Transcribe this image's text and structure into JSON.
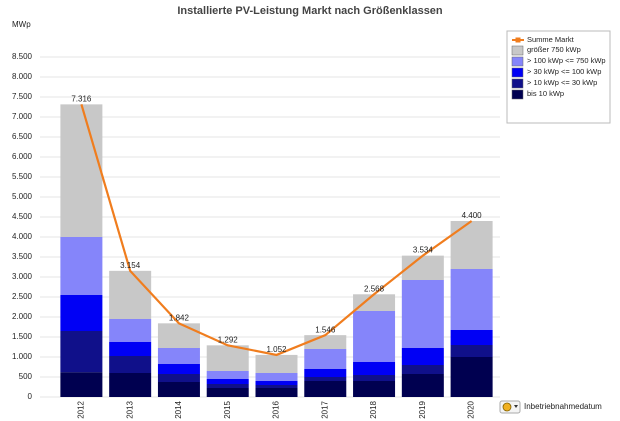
{
  "chart_data": {
    "type": "stacked-bar-line",
    "title": "Installierte PV-Leistung Markt nach Größenklassen",
    "y_label": "MWp",
    "categories": [
      "2012",
      "2013",
      "2014",
      "2015",
      "2016",
      "2017",
      "2018",
      "2019",
      "2020"
    ],
    "series": [
      {
        "name": "bis 10 kWp",
        "color": "#000050",
        "values": [
          620,
          600,
          375,
          225,
          225,
          400,
          400,
          575,
          1000
        ]
      },
      {
        "name": "> 10 kWp <= 30 kWp",
        "color": "#10108a",
        "values": [
          1030,
          425,
          200,
          100,
          75,
          100,
          150,
          225,
          300
        ]
      },
      {
        "name": "> 30 kWp <= 100 kWp",
        "color": "#0000f5",
        "values": [
          900,
          350,
          250,
          125,
          100,
          200,
          325,
          425,
          375
        ]
      },
      {
        "name": "> 100 kWp <= 750 kWp",
        "color": "#8585fa",
        "values": [
          1450,
          575,
          400,
          200,
          200,
          500,
          1275,
          1700,
          1525
        ]
      },
      {
        "name": "größer 750 kWp",
        "color": "#c8c8c8",
        "values": [
          3316,
          1204,
          617,
          642,
          452,
          346,
          418,
          609,
          1200
        ]
      }
    ],
    "total": {
      "name": "Summe Markt",
      "color": "#f07d1e",
      "values": [
        7316,
        3154,
        1842,
        1292,
        1052,
        1546,
        2568,
        3534,
        4400
      ],
      "value_labels": [
        "7.316",
        "3.154",
        "1.842",
        "1.292",
        "1.052",
        "1.546",
        "2.568",
        "3.534",
        "4.400"
      ]
    },
    "ylim": [
      0,
      8500
    ],
    "yticks": [
      0,
      500,
      {
        "value": 1000,
        "label": "1.000"
      },
      {
        "value": 1500,
        "label": "1.500"
      },
      {
        "value": 2000,
        "label": "2.000"
      },
      {
        "value": 2500,
        "label": "2.500"
      },
      {
        "value": 3000,
        "label": "3.000"
      },
      {
        "value": 3500,
        "label": "3.500"
      },
      {
        "value": 4000,
        "label": "4.000"
      },
      {
        "value": 4500,
        "label": "4.500"
      },
      {
        "value": 5000,
        "label": "5.000"
      },
      {
        "value": 5500,
        "label": "5.500"
      },
      {
        "value": 6000,
        "label": "6.000"
      },
      {
        "value": 6500,
        "label": "6.500"
      },
      {
        "value": 7000,
        "label": "7.000"
      },
      {
        "value": 7500,
        "label": "7.500"
      },
      {
        "value": 8000,
        "label": "8.000"
      },
      {
        "value": 8500,
        "label": "8.500"
      }
    ],
    "grid": true
  },
  "toolbar": {
    "x_axis_option": "Inbetriebnahmedatum"
  }
}
